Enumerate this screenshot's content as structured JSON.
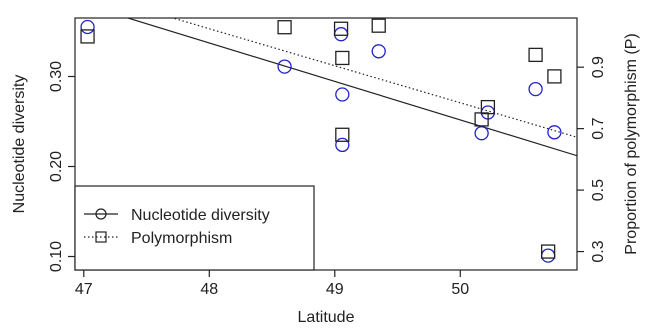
{
  "chart_data": {
    "type": "scatter",
    "xlabel": "Latitude",
    "ylabel_left": "Nucleotide diversity",
    "ylabel_right": "Proportion of polymorphism (P)",
    "xlim": [
      46.93,
      50.93
    ],
    "ylim_left": [
      0.085,
      0.365
    ],
    "ylim_right": [
      0.24,
      1.06
    ],
    "xticks": [
      "47",
      "48",
      "49",
      "50"
    ],
    "yticks_left": [
      "0.10",
      "0.20",
      "0.30"
    ],
    "yticks_right": [
      "0.3",
      "0.5",
      "0.7",
      "0.9"
    ],
    "series": [
      {
        "name": "Nucleotide diversity",
        "axis": "left",
        "marker": "circle",
        "color": "#2222cc",
        "x": [
          47.03,
          48.6,
          49.05,
          49.06,
          49.06,
          49.35,
          50.17,
          50.22,
          50.6,
          50.7,
          50.75
        ],
        "y": [
          0.355,
          0.311,
          0.347,
          0.28,
          0.224,
          0.328,
          0.237,
          0.26,
          0.286,
          0.101,
          0.238
        ]
      },
      {
        "name": "Polymorphism",
        "axis": "right",
        "marker": "square",
        "color": "#222222",
        "x": [
          47.03,
          48.6,
          49.05,
          49.06,
          49.06,
          49.35,
          50.17,
          50.22,
          50.6,
          50.7,
          50.75
        ],
        "y": [
          1.0,
          1.03,
          1.025,
          0.93,
          0.68,
          1.035,
          0.73,
          0.77,
          0.94,
          0.3,
          0.87
        ]
      }
    ],
    "fit_lines": [
      {
        "series": "Nucleotide diversity",
        "axis": "left",
        "style": "solid",
        "x": [
          46.93,
          50.93
        ],
        "y": [
          0.383,
          0.212
        ]
      },
      {
        "series": "Polymorphism",
        "axis": "right",
        "style": "dotted",
        "x": [
          46.93,
          50.93
        ],
        "y": [
          1.154,
          0.672
        ]
      }
    ],
    "legend": {
      "placement": "bottom-left",
      "entries": [
        {
          "label": "Nucleotide diversity",
          "marker": "circle",
          "line": "solid"
        },
        {
          "label": "Polymorphism",
          "marker": "square",
          "line": "dotted"
        }
      ]
    },
    "grid": false
  }
}
